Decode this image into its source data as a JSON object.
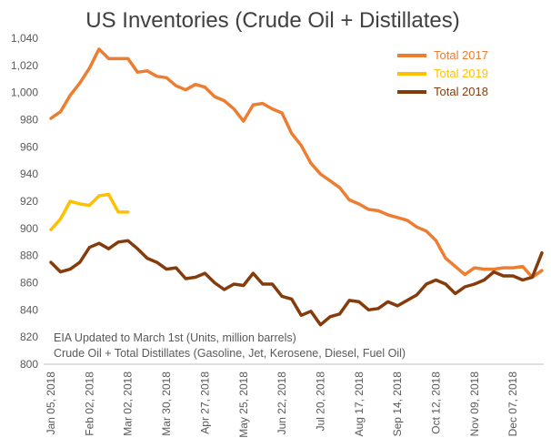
{
  "chart_data": {
    "type": "line",
    "title": "US Inventories (Crude Oil + Distillates)",
    "xlabel": "",
    "ylabel": "",
    "ylim": [
      800,
      1040
    ],
    "yticks": [
      "1,040",
      "1,020",
      "1,000",
      "980",
      "960",
      "940",
      "920",
      "900",
      "880",
      "860",
      "840",
      "820",
      "800"
    ],
    "xtick_labels": [
      "Jan 05, 2018",
      "Feb 02, 2018",
      "Mar 02, 2018",
      "Mar 30, 2018",
      "Apr 27, 2018",
      "May 25, 2018",
      "Jun 22, 2018",
      "Jul 20, 2018",
      "Aug 17, 2018",
      "Sep 14, 2018",
      "Oct 12, 2018",
      "Nov 09, 2018",
      "Dec 07, 2018"
    ],
    "x_week_count": 52,
    "grid": false,
    "legend_position": "top-right",
    "annotations": [
      "EIA  Updated to March 1st (Units, million barrels)",
      "Crude Oil + Total Distillates (Gasoline, Jet, Kerosene, Diesel, Fuel Oil)"
    ],
    "series": [
      {
        "name": "Total 2017",
        "color": "#ED7D31",
        "values": [
          981,
          986,
          998,
          1007,
          1018,
          1032,
          1025,
          1025,
          1025,
          1015,
          1016,
          1012,
          1011,
          1005,
          1002,
          1006,
          1004,
          997,
          994,
          988,
          979,
          991,
          992,
          988,
          985,
          970,
          961,
          948,
          940,
          935,
          930,
          921,
          918,
          914,
          913,
          910,
          908,
          906,
          901,
          898,
          891,
          878,
          872,
          866,
          871,
          870,
          870,
          871,
          871,
          872,
          864,
          869
        ]
      },
      {
        "name": "Total 2019",
        "color": "#FFC000",
        "values": [
          899,
          907,
          920,
          918,
          917,
          924,
          925,
          912,
          912
        ]
      },
      {
        "name": "Total 2018",
        "color": "#843C0C",
        "values": [
          875,
          868,
          870,
          875,
          886,
          889,
          885,
          890,
          891,
          885,
          878,
          875,
          870,
          871,
          863,
          864,
          867,
          860,
          855,
          859,
          858,
          867,
          859,
          859,
          850,
          848,
          836,
          839,
          829,
          835,
          837,
          847,
          846,
          840,
          841,
          846,
          843,
          847,
          851,
          859,
          862,
          859,
          852,
          857,
          859,
          862,
          868,
          865,
          865,
          862,
          864,
          882
        ]
      }
    ]
  }
}
